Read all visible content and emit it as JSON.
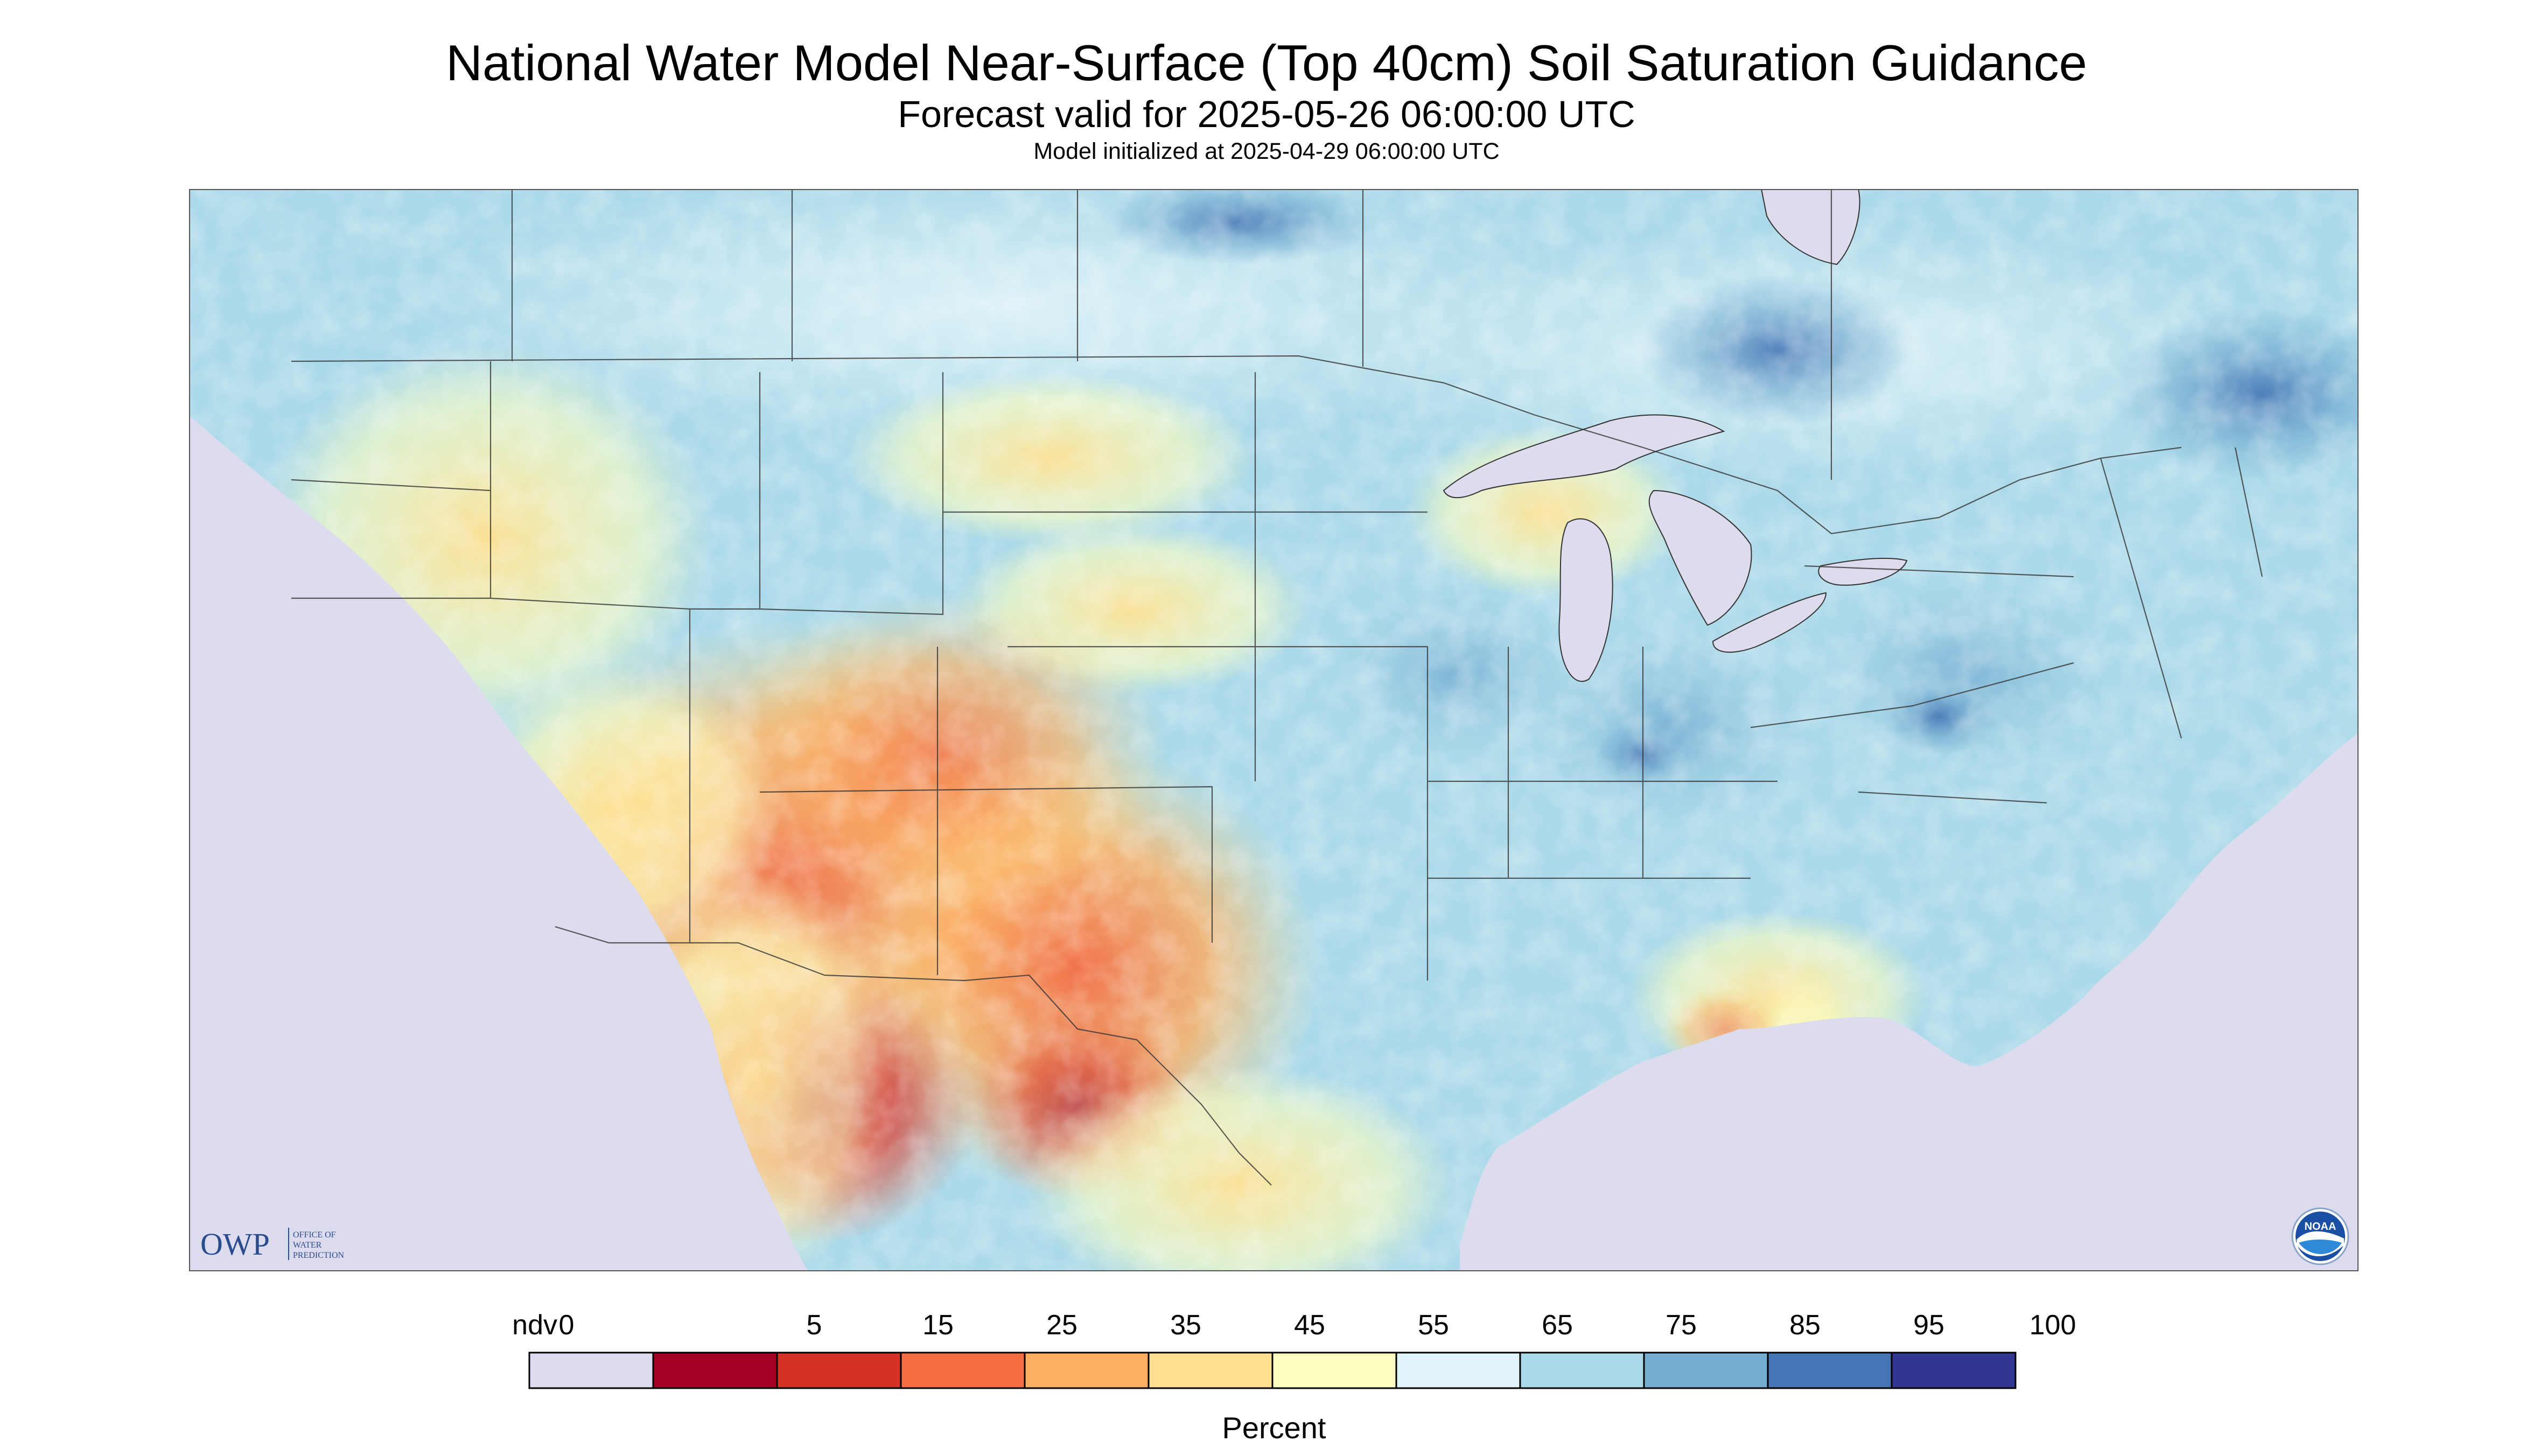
{
  "title": "National Water Model Near-Surface (Top 40cm) Soil Saturation Guidance",
  "subtitle": "Forecast valid for 2025-05-26 06:00:00 UTC",
  "init_line": "Model initialized at 2025-04-29 06:00:00 UTC",
  "logos": {
    "owp_letters": "OWP",
    "owp_text_1": "OFFICE OF",
    "owp_text_2": "WATER",
    "owp_text_3": "PREDICTION",
    "noaa_text": "NOAA"
  },
  "colors": {
    "ndv": "#dcdcee",
    "water": "#dcdcee",
    "border": "#333333",
    "scale": [
      "#dcdcee",
      "#a50026",
      "#d73027",
      "#f46d43",
      "#fdae61",
      "#fee090",
      "#ffffbf",
      "#e0f3f8",
      "#abd9e9",
      "#74add1",
      "#4575b4",
      "#313695"
    ]
  },
  "legend": {
    "ticks": [
      "ndv",
      "0",
      "5",
      "15",
      "25",
      "35",
      "45",
      "55",
      "65",
      "75",
      "85",
      "95",
      "100"
    ],
    "label": "Percent"
  }
}
